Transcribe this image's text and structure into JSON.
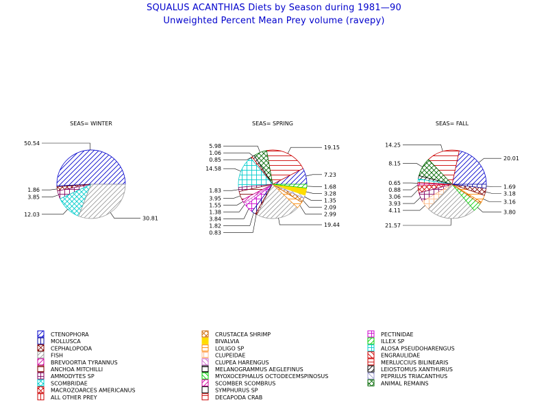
{
  "titles": {
    "line1": "SQUALUS ACANTHIAS Diets by Season during 1981—90",
    "line2": "Unweighted Percent Mean Prey volume (ravepy)"
  },
  "chart_data": [
    {
      "type": "pie",
      "title": "SEAS= WINTER",
      "slices": [
        {
          "category": "CTENOPHORA",
          "value": 50.54,
          "label": "50.54",
          "color": "#0000cc",
          "pattern": "diag-r"
        },
        {
          "category": "MOLLUSCA",
          "value": 0.49,
          "label": "",
          "color": "#000099",
          "pattern": "vert"
        },
        {
          "category": "CEPHALOPODA",
          "value": 1.86,
          "label": "1.86",
          "color": "#800000",
          "pattern": "cross-x"
        },
        {
          "category": "AMMODYTES SP",
          "value": 3.85,
          "label": "3.85",
          "color": "#800060",
          "pattern": "grid"
        },
        {
          "category": "SCOMBRIDAE",
          "value": 12.03,
          "label": "12.03",
          "color": "#00cccc",
          "pattern": "cross-x"
        },
        {
          "category": "FISH",
          "value": 30.81,
          "label": "30.81",
          "color": "#999999",
          "pattern": "diag-r"
        }
      ]
    },
    {
      "type": "pie",
      "title": "SEAS= SPRING",
      "slices": [
        {
          "category": "CTENOPHORA",
          "value": 7.23,
          "label": "7.23",
          "color": "#0000cc",
          "pattern": "diag-r"
        },
        {
          "category": "DECAPODA CRAB",
          "value": 19.15,
          "label": "19.15",
          "color": "#cc0000",
          "pattern": "horiz"
        },
        {
          "category": "ANIMAL REMAINS",
          "value": 5.98,
          "label": "5.98",
          "color": "#006600",
          "pattern": "cross-x"
        },
        {
          "category": "LEIOSTOMUS XANTHURUS",
          "value": 1.06,
          "label": "1.06",
          "color": "#000000",
          "pattern": "diag-r"
        },
        {
          "category": "ALL OTHER PREY",
          "value": 0.85,
          "label": "0.85",
          "color": "#cc0000",
          "pattern": "vert"
        },
        {
          "category": "ALOSA PSEUDOHARENGUS",
          "value": 14.58,
          "label": "14.58",
          "color": "#00cccc",
          "pattern": "grid"
        },
        {
          "category": "AMMODYTES SP",
          "value": 1.83,
          "label": "1.83",
          "color": "#800060",
          "pattern": "grid"
        },
        {
          "category": "ANCHOA MITCHILLI",
          "value": 3.95,
          "label": "3.95",
          "color": "#800000",
          "pattern": "horiz"
        },
        {
          "category": "BREVOORTIA TYRANNUS",
          "value": 1.55,
          "label": "1.55",
          "color": "#cc0099",
          "pattern": "diag-r"
        },
        {
          "category": "CLUPEA HARENGUS",
          "value": 1.38,
          "label": "1.38",
          "color": "#cc66cc",
          "pattern": "diag-l"
        },
        {
          "category": "PECTINIDAE",
          "value": 3.84,
          "label": "3.84",
          "color": "#cc00cc",
          "pattern": "grid"
        },
        {
          "category": "MOLLUSCA",
          "value": 1.82,
          "label": "1.82",
          "color": "#000099",
          "pattern": "vert"
        },
        {
          "category": "CEPHALOPODA",
          "value": 0.83,
          "label": "0.83",
          "color": "#800000",
          "pattern": "cross-x"
        },
        {
          "category": "FISH",
          "value": 19.44,
          "label": "19.44",
          "color": "#999999",
          "pattern": "diag-r"
        },
        {
          "category": "LOLIGO SP",
          "value": 2.99,
          "label": "2.99",
          "color": "#ff8800",
          "pattern": "horiz"
        },
        {
          "category": "CRUSTACEA SHRIMP",
          "value": 2.09,
          "label": "2.09",
          "color": "#cc6600",
          "pattern": "cross-x"
        },
        {
          "category": "PEPRILUS TRIACANTHUS",
          "value": 1.35,
          "label": "1.35",
          "color": "#9999cc",
          "pattern": "diag-l"
        },
        {
          "category": "BIVALVIA",
          "value": 3.28,
          "label": "3.28",
          "color": "#ffdd00",
          "pattern": "solid"
        },
        {
          "category": "ILLEX SP",
          "value": 1.68,
          "label": "1.68",
          "color": "#00cc00",
          "pattern": "diag-r"
        }
      ]
    },
    {
      "type": "pie",
      "title": "SEAS= FALL",
      "slices": [
        {
          "category": "CTENOPHORA",
          "value": 20.01,
          "label": "20.01",
          "color": "#0000cc",
          "pattern": "diag-r"
        },
        {
          "category": "DECAPODA CRAB",
          "value": 14.25,
          "label": "14.25",
          "color": "#cc0000",
          "pattern": "horiz"
        },
        {
          "category": "ANIMAL REMAINS",
          "value": 8.15,
          "label": "8.15",
          "color": "#006600",
          "pattern": "cross-x"
        },
        {
          "category": "LEIOSTOMUS XANTHURUS",
          "value": 1.43,
          "label": "",
          "color": "#000000",
          "pattern": "diag-r"
        },
        {
          "category": "ALOSA PSEUDOHARENGUS",
          "value": 1.5,
          "label": "",
          "color": "#00cccc",
          "pattern": "grid"
        },
        {
          "category": "ALL OTHER PREY",
          "value": 0.65,
          "label": "0.65",
          "color": "#cc0000",
          "pattern": "vert"
        },
        {
          "category": "SCOMBER SCOMBRUS",
          "value": 0.88,
          "label": "0.88",
          "color": "#cc0099",
          "pattern": "diag-r"
        },
        {
          "category": "MACROZOARCES AMERICANUS",
          "value": 3.06,
          "label": "3.06",
          "color": "#cc0000",
          "pattern": "cross-x"
        },
        {
          "category": "AMMODYTES SP",
          "value": 3.93,
          "label": "3.93",
          "color": "#800060",
          "pattern": "grid"
        },
        {
          "category": "CLUPEIDAE",
          "value": 4.11,
          "label": "4.11",
          "color": "#ffbb88",
          "pattern": "grid"
        },
        {
          "category": "FISH",
          "value": 21.57,
          "label": "21.57",
          "color": "#999999",
          "pattern": "diag-r"
        },
        {
          "category": "ILLEX SP",
          "value": 3.8,
          "label": "3.80",
          "color": "#00cc00",
          "pattern": "diag-r"
        },
        {
          "category": "CRUSTACEA SHRIMP",
          "value": 0.9,
          "label": "",
          "color": "#cc6600",
          "pattern": "cross-x"
        },
        {
          "category": "LOLIGO SP",
          "value": 3.16,
          "label": "3.16",
          "color": "#ff8800",
          "pattern": "horiz"
        },
        {
          "category": "CEPHALOPODA",
          "value": 3.18,
          "label": "3.18",
          "color": "#800000",
          "pattern": "cross-x"
        },
        {
          "category": "MOLLUSCA",
          "value": 1.69,
          "label": "1.69",
          "color": "#000099",
          "pattern": "vert"
        }
      ]
    }
  ],
  "legend": [
    {
      "label": "CTENOPHORA",
      "color": "#0000cc",
      "pattern": "diag-r"
    },
    {
      "label": "MOLLUSCA",
      "color": "#000099",
      "pattern": "vert"
    },
    {
      "label": "CEPHALOPODA",
      "color": "#800000",
      "pattern": "cross-x"
    },
    {
      "label": "FISH",
      "color": "#999999",
      "pattern": "diag-r"
    },
    {
      "label": "BREVOORTIA TYRANNUS",
      "color": "#cc0099",
      "pattern": "diag-r"
    },
    {
      "label": "ANCHOA MITCHILLI",
      "color": "#800000",
      "pattern": "horiz"
    },
    {
      "label": "AMMODYTES SP",
      "color": "#800060",
      "pattern": "grid"
    },
    {
      "label": "SCOMBRIDAE",
      "color": "#00cccc",
      "pattern": "cross-x"
    },
    {
      "label": "MACROZOARCES AMERICANUS",
      "color": "#cc0000",
      "pattern": "cross-x"
    },
    {
      "label": "ALL OTHER PREY",
      "color": "#cc0000",
      "pattern": "vert"
    },
    {
      "label": "CRUSTACEA SHRIMP",
      "color": "#cc6600",
      "pattern": "cross-x"
    },
    {
      "label": "BIVALVIA",
      "color": "#ffdd00",
      "pattern": "solid"
    },
    {
      "label": "LOLIGO SP",
      "color": "#ff8800",
      "pattern": "horiz"
    },
    {
      "label": "CLUPEIDAE",
      "color": "#ffbb88",
      "pattern": "grid"
    },
    {
      "label": "CLUPEA HARENGUS",
      "color": "#cc66cc",
      "pattern": "diag-l"
    },
    {
      "label": "MELANOGRAMMUS AEGLEFINUS",
      "color": "#000000",
      "pattern": "horiz"
    },
    {
      "label": "MYOXOCEPHALUS OCTODECEMSPINOSUS",
      "color": "#00cc00",
      "pattern": "diag-l"
    },
    {
      "label": "SCOMBER SCOMBRUS",
      "color": "#cc0099",
      "pattern": "diag-r"
    },
    {
      "label": "SYMPHURUS SP",
      "color": "#000000",
      "pattern": "none"
    },
    {
      "label": "DECAPODA CRAB",
      "color": "#cc0000",
      "pattern": "horiz"
    },
    {
      "label": "PECTINIDAE",
      "color": "#cc00cc",
      "pattern": "grid"
    },
    {
      "label": "ILLEX SP",
      "color": "#00cc00",
      "pattern": "diag-r"
    },
    {
      "label": "ALOSA PSEUDOHARENGUS",
      "color": "#00cccc",
      "pattern": "grid"
    },
    {
      "label": "ENGRAULIDAE",
      "color": "#cc0000",
      "pattern": "diag-l"
    },
    {
      "label": "MERLUCCIUS BILINEARIS",
      "color": "#cc0000",
      "pattern": "horiz"
    },
    {
      "label": "LEIOSTOMUS XANTHURUS",
      "color": "#000000",
      "pattern": "diag-r"
    },
    {
      "label": "PEPRILUS TRIACANTHUS",
      "color": "#9999cc",
      "pattern": "diag-l"
    },
    {
      "label": "ANIMAL REMAINS",
      "color": "#006600",
      "pattern": "cross-x"
    }
  ]
}
